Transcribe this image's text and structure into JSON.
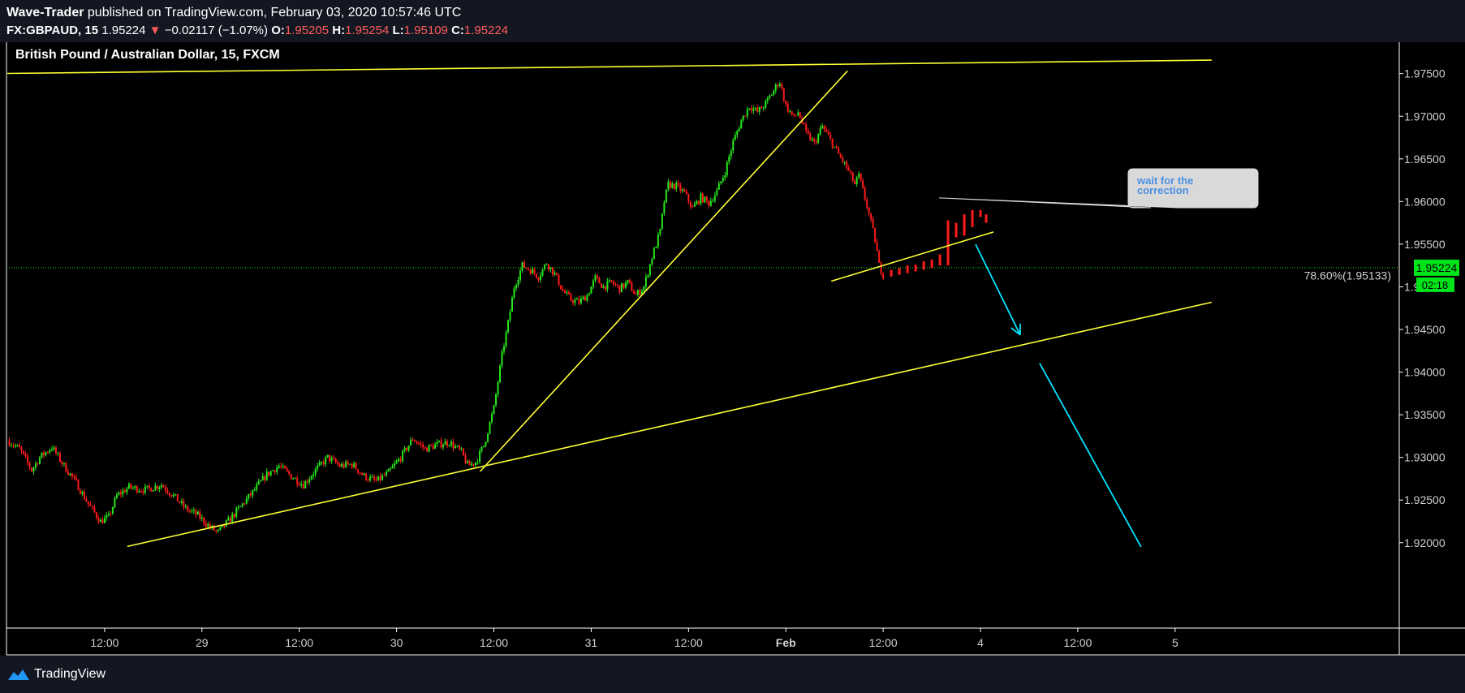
{
  "header": {
    "author": "Wave-Trader",
    "published_text": "published on TradingView.com, February 03, 2020 10:57:46 UTC",
    "symbol": "FX:GBPAUD, 15",
    "last_price": "1.95224",
    "arrow": "▼",
    "change": "−0.02117 (−1.07%)",
    "open_label": "O:",
    "open": "1.95205",
    "high_label": "H:",
    "high": "1.95254",
    "low_label": "L:",
    "low": "1.95109",
    "close_label": "C:",
    "close": "1.95224"
  },
  "footer": {
    "brand": "TradingView",
    "logo_icon": "tradingview-logo-icon"
  },
  "colors": {
    "up": "#26e81a",
    "down": "#ff1a1a",
    "trendline": "#ffff33",
    "arrow": "#00e5ff",
    "price_tag": "#00e51a",
    "background": "#000000",
    "header_bg": "#131722"
  },
  "chart_data": {
    "type": "candlestick",
    "title": "British Pound / Australian Dollar, 15, FXCM",
    "ylim": [
      1.92,
      1.977
    ],
    "y_ticks": [
      "1.97500",
      "1.97000",
      "1.96500",
      "1.96000",
      "1.95500",
      "1.95000",
      "1.94500",
      "1.94000",
      "1.93500",
      "1.93000",
      "1.92500",
      "1.92000"
    ],
    "x_ticks": [
      "12:00",
      "29",
      "12:00",
      "30",
      "12:00",
      "31",
      "12:00",
      "Feb",
      "12:00",
      "4",
      "12:00",
      "5"
    ],
    "x_ticks_hours": [
      12,
      24,
      36,
      48,
      60,
      72,
      84,
      96,
      108,
      120,
      132,
      144
    ],
    "current_price": "1.95224",
    "countdown": "02:18",
    "price_line_label": "78.60%(1.95133)",
    "price_line_level": 1.95133,
    "close_path": [
      [
        0,
        1.932
      ],
      [
        1.5,
        1.931
      ],
      [
        3,
        1.9285
      ],
      [
        4,
        1.93
      ],
      [
        5.5,
        1.9312
      ],
      [
        7,
        1.929
      ],
      [
        8.5,
        1.927
      ],
      [
        10,
        1.9245
      ],
      [
        11.5,
        1.9225
      ],
      [
        12.5,
        1.923
      ],
      [
        13.5,
        1.9255
      ],
      [
        15,
        1.9265
      ],
      [
        17,
        1.9262
      ],
      [
        19,
        1.9268
      ],
      [
        20.5,
        1.9255
      ],
      [
        22,
        1.924
      ],
      [
        23.5,
        1.9232
      ],
      [
        25,
        1.9218
      ],
      [
        26,
        1.9212
      ],
      [
        27.5,
        1.9228
      ],
      [
        29,
        1.9245
      ],
      [
        30.5,
        1.9262
      ],
      [
        32,
        1.928
      ],
      [
        33.5,
        1.929
      ],
      [
        35,
        1.9278
      ],
      [
        36.5,
        1.9268
      ],
      [
        38,
        1.9285
      ],
      [
        39.5,
        1.93
      ],
      [
        41,
        1.929
      ],
      [
        42.5,
        1.9292
      ],
      [
        44,
        1.9278
      ],
      [
        45.5,
        1.9272
      ],
      [
        47,
        1.9282
      ],
      [
        48.5,
        1.93
      ],
      [
        50,
        1.9322
      ],
      [
        51.5,
        1.931
      ],
      [
        53,
        1.9315
      ],
      [
        54.5,
        1.9318
      ],
      [
        56,
        1.9306
      ],
      [
        56.8,
        1.929
      ],
      [
        57.8,
        1.9295
      ],
      [
        58.8,
        1.9315
      ],
      [
        60,
        1.9358
      ],
      [
        61,
        1.942
      ],
      [
        61.8,
        1.946
      ],
      [
        62.5,
        1.95
      ],
      [
        63.5,
        1.9525
      ],
      [
        64.5,
        1.952
      ],
      [
        65.5,
        1.9512
      ],
      [
        66.5,
        1.9528
      ],
      [
        67.5,
        1.9515
      ],
      [
        68.5,
        1.9495
      ],
      [
        69.5,
        1.9485
      ],
      [
        70.5,
        1.9482
      ],
      [
        71.5,
        1.949
      ],
      [
        72.5,
        1.951
      ],
      [
        73.5,
        1.95
      ],
      [
        74.5,
        1.9505
      ],
      [
        75.5,
        1.9498
      ],
      [
        76.5,
        1.9505
      ],
      [
        77.5,
        1.949
      ],
      [
        78.5,
        1.95
      ],
      [
        79.5,
        1.9535
      ],
      [
        80.5,
        1.9565
      ],
      [
        81,
        1.96
      ],
      [
        81.5,
        1.962
      ],
      [
        82.5,
        1.9618
      ],
      [
        83.5,
        1.961
      ],
      [
        84.5,
        1.9592
      ],
      [
        85.5,
        1.9605
      ],
      [
        86.5,
        1.9598
      ],
      [
        87.5,
        1.9612
      ],
      [
        88.5,
        1.9635
      ],
      [
        89.5,
        1.967
      ],
      [
        90.5,
        1.9695
      ],
      [
        91.5,
        1.9712
      ],
      [
        92.5,
        1.9705
      ],
      [
        93.5,
        1.9715
      ],
      [
        94.5,
        1.973
      ],
      [
        95.2,
        1.9742
      ],
      [
        96,
        1.9712
      ],
      [
        97,
        1.9698
      ],
      [
        97.5,
        1.9705
      ],
      [
        98.5,
        1.968
      ],
      [
        99.5,
        1.9668
      ],
      [
        100.5,
        1.9688
      ],
      [
        101.5,
        1.9672
      ],
      [
        102.5,
        1.9655
      ],
      [
        103.5,
        1.964
      ],
      [
        104.5,
        1.962
      ],
      [
        105,
        1.963
      ],
      [
        106,
        1.9595
      ],
      [
        107,
        1.9555
      ],
      [
        107.5,
        1.9525
      ],
      [
        108,
        1.9514
      ]
    ],
    "projection_candles": [
      {
        "h": 109.0,
        "o": 1.952,
        "c": 1.9512
      },
      {
        "h": 110.0,
        "o": 1.9522,
        "c": 1.9514
      },
      {
        "h": 111.0,
        "o": 1.9525,
        "c": 1.9516
      },
      {
        "h": 112.0,
        "o": 1.9526,
        "c": 1.9518
      },
      {
        "h": 113.0,
        "o": 1.953,
        "c": 1.952
      },
      {
        "h": 114.0,
        "o": 1.9532,
        "c": 1.9522
      },
      {
        "h": 115.0,
        "o": 1.9538,
        "c": 1.9525
      },
      {
        "h": 116.0,
        "o": 1.9578,
        "c": 1.9525
      },
      {
        "h": 117.0,
        "o": 1.9575,
        "c": 1.9558
      },
      {
        "h": 118.0,
        "o": 1.9585,
        "c": 1.956
      },
      {
        "h": 119.0,
        "o": 1.959,
        "c": 1.957
      },
      {
        "h": 120.0,
        "o": 1.959,
        "c": 1.9582
      },
      {
        "h": 120.7,
        "o": 1.9585,
        "c": 1.9575
      }
    ],
    "trendlines": [
      {
        "from": [
          0,
          1.97502
        ],
        "to": [
          148.5,
          1.97658
        ]
      },
      {
        "from": [
          58.3,
          1.92835
        ],
        "to": [
          103.6,
          1.97531
        ]
      },
      {
        "from": [
          14.8,
          1.91956
        ],
        "to": [
          148.5,
          1.94819
        ]
      },
      {
        "from": [
          101.6,
          1.95066
        ],
        "to": [
          121.6,
          1.95643
        ]
      }
    ],
    "arrows": [
      {
        "from": [
          119.4,
          1.95498
        ],
        "to": [
          124.9,
          1.94436
        ]
      },
      {
        "from": [
          127.3,
          1.94102
        ],
        "to": [
          139.8,
          1.91951
        ]
      }
    ],
    "annotation": {
      "text_line1": "wait for the",
      "text_line2": "correction",
      "anchor": [
        114.9,
        1.96043
      ]
    }
  }
}
